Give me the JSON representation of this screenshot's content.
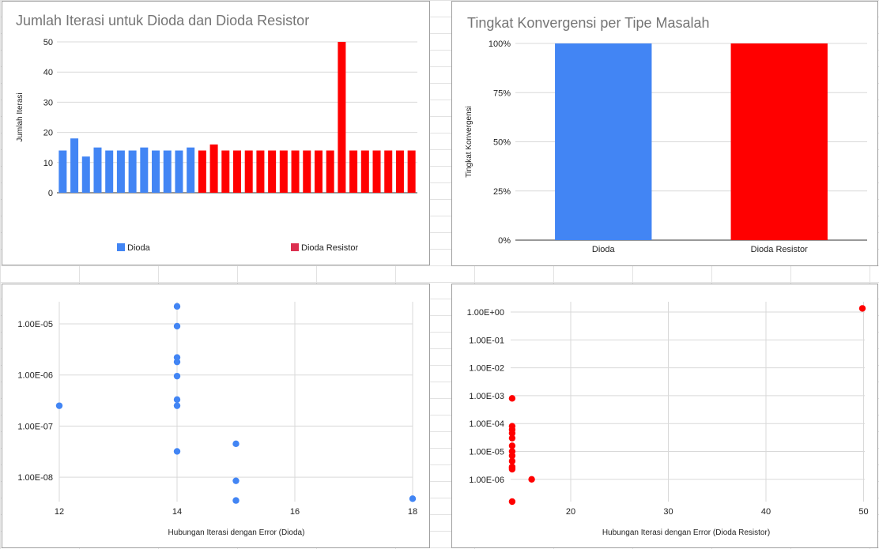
{
  "colors": {
    "dioda": "#4285f4",
    "dioda_resistor": "#ff0000",
    "legend_dioda_resistor": "#dc3050",
    "gridline": "#d9d9d9",
    "axis": "#333333",
    "title": "#757575"
  },
  "chart_data": [
    {
      "type": "bar",
      "title": "Jumlah Iterasi untuk Dioda dan Dioda Resistor",
      "xlabel": "",
      "ylabel": "Jumlah Iterasi",
      "ylim": [
        0,
        50
      ],
      "yticks": [
        "0",
        "10",
        "20",
        "30",
        "40",
        "50"
      ],
      "grid": true,
      "legend_position": "bottom",
      "series": [
        {
          "name": "Dioda",
          "values": [
            14,
            18,
            12,
            15,
            14,
            14,
            14,
            15,
            14,
            14,
            14,
            15
          ]
        },
        {
          "name": "Dioda Resistor",
          "values": [
            14,
            16,
            14,
            14,
            14,
            14,
            14,
            14,
            14,
            14,
            14,
            14,
            50,
            14,
            14,
            14,
            14,
            14,
            14
          ]
        }
      ]
    },
    {
      "type": "bar",
      "title": "Tingkat Konvergensi per Tipe Masalah",
      "xlabel": "",
      "ylabel": "Tingkat Konvergensi",
      "ylim": [
        0,
        100
      ],
      "yticks": [
        "0%",
        "25%",
        "50%",
        "75%",
        "100%"
      ],
      "grid": true,
      "categories": [
        "Dioda",
        "Dioda Resistor"
      ],
      "values": [
        100,
        100
      ]
    },
    {
      "type": "scatter",
      "title": "",
      "xlabel": "Hubungan Iterasi dengan Error (Dioda)",
      "ylabel": "",
      "yscale": "log",
      "xlim": [
        12,
        18
      ],
      "xticks": [
        "12",
        "14",
        "16",
        "18"
      ],
      "yticks": [
        "1.00E-05",
        "1.00E-06",
        "1.00E-07",
        "1.00E-08"
      ],
      "grid": true,
      "x": [
        14,
        14,
        14,
        14,
        14,
        14,
        14,
        12,
        14,
        15,
        15,
        15,
        18
      ],
      "y": [
        2.2e-05,
        9e-06,
        2.2e-06,
        1.8e-06,
        9.5e-07,
        3.3e-07,
        2.5e-07,
        2.5e-07,
        3.2e-08,
        4.5e-08,
        8.5e-09,
        3.5e-09,
        3.8e-09
      ]
    },
    {
      "type": "scatter",
      "title": "",
      "xlabel": "Hubungan Iterasi dengan Error (Dioda Resistor)",
      "ylabel": "",
      "yscale": "log",
      "xticks": [
        "20",
        "30",
        "40",
        "50"
      ],
      "yticks": [
        "1.00E+00",
        "1.00E-01",
        "1.00E-02",
        "1.00E-03",
        "1.00E-04",
        "1.00E-05",
        "1.00E-06"
      ],
      "grid": true,
      "x": [
        50,
        14,
        14,
        14,
        14,
        14,
        14,
        14,
        14,
        14,
        14,
        14,
        14,
        16,
        14
      ],
      "y": [
        1.35,
        0.0008,
        8e-05,
        6e-05,
        4.5e-05,
        3e-05,
        1.6e-05,
        1e-05,
        7e-06,
        4.5e-06,
        2.8e-06,
        2.3e-06,
        2.6e-06,
        1e-06,
        1.3e-07
      ]
    }
  ]
}
